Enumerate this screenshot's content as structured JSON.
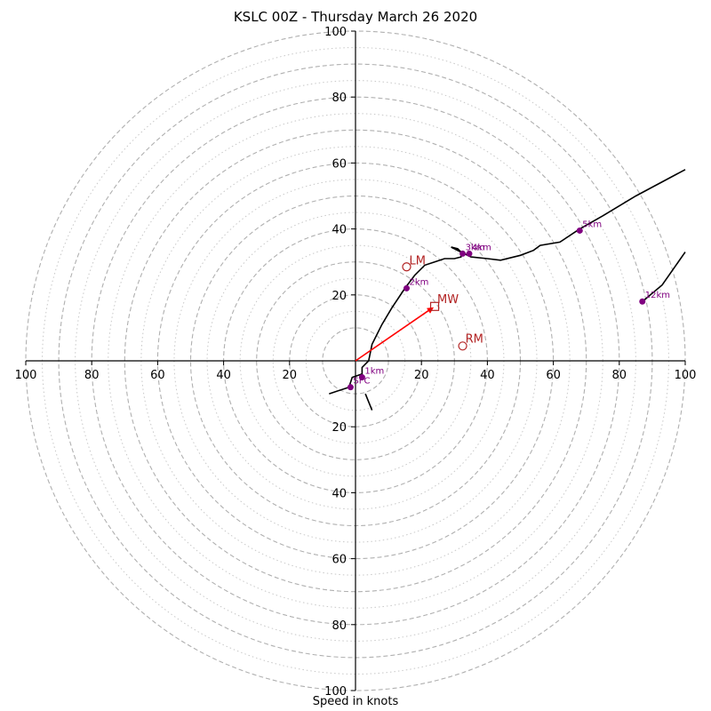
{
  "chart_data": {
    "type": "hodograph",
    "title": "KSLC 00Z - Thursday March 26 2020",
    "xlabel": "Speed in knots",
    "range": [
      -100,
      100
    ],
    "ring_major": [
      10,
      20,
      30,
      40,
      50,
      60,
      70,
      80,
      90,
      100
    ],
    "ring_minor": [
      15,
      25,
      35,
      45,
      55,
      65,
      75,
      85,
      95
    ],
    "x_ticks": [
      {
        "v": -100,
        "label": "100"
      },
      {
        "v": -80,
        "label": "80"
      },
      {
        "v": -60,
        "label": "60"
      },
      {
        "v": -40,
        "label": "40"
      },
      {
        "v": -20,
        "label": "20"
      },
      {
        "v": 20,
        "label": "20"
      },
      {
        "v": 40,
        "label": "40"
      },
      {
        "v": 60,
        "label": "60"
      },
      {
        "v": 80,
        "label": "80"
      },
      {
        "v": 100,
        "label": "100"
      }
    ],
    "y_ticks": [
      {
        "v": 100,
        "label": "100"
      },
      {
        "v": 80,
        "label": "80"
      },
      {
        "v": 60,
        "label": "60"
      },
      {
        "v": 40,
        "label": "40"
      },
      {
        "v": 20,
        "label": "20"
      },
      {
        "v": -20,
        "label": "20"
      },
      {
        "v": -40,
        "label": "40"
      },
      {
        "v": -60,
        "label": "60"
      },
      {
        "v": -80,
        "label": "80"
      },
      {
        "v": -100,
        "label": "100"
      }
    ],
    "trace": [
      [
        -8,
        -10
      ],
      [
        -2,
        -8
      ],
      [
        -1,
        -5
      ],
      [
        2,
        -4
      ],
      [
        2,
        -2
      ],
      [
        4,
        0
      ],
      [
        5,
        5
      ],
      [
        8,
        11
      ],
      [
        11,
        16
      ],
      [
        15,
        22
      ],
      [
        18,
        26
      ],
      [
        21,
        29
      ],
      [
        24,
        30
      ],
      [
        27,
        31
      ],
      [
        30,
        31
      ],
      [
        32,
        31.5
      ],
      [
        32,
        33
      ],
      [
        31,
        34
      ],
      [
        29,
        34.5
      ],
      [
        32,
        33
      ],
      [
        35,
        31.5
      ],
      [
        40,
        31
      ],
      [
        44,
        30.5
      ],
      [
        50,
        32
      ],
      [
        54,
        33.5
      ],
      [
        56,
        35
      ],
      [
        62,
        36
      ],
      [
        68,
        40
      ],
      [
        75,
        44
      ],
      [
        85,
        50
      ],
      [
        100,
        58
      ]
    ],
    "trace2": [
      [
        3,
        -10
      ],
      [
        5,
        -15
      ]
    ],
    "trace3": [
      [
        87,
        18
      ],
      [
        93,
        23
      ],
      [
        100,
        33
      ]
    ],
    "height_markers": [
      {
        "label": "SFC",
        "u": -1.5,
        "v": -8
      },
      {
        "label": "1km",
        "u": 2,
        "v": -5
      },
      {
        "label": "2km",
        "u": 15.5,
        "v": 22
      },
      {
        "label": "3km",
        "u": 32.5,
        "v": 32.5
      },
      {
        "label": "4km",
        "u": 34.5,
        "v": 32.5
      },
      {
        "label": "5km",
        "u": 68,
        "v": 39.5
      },
      {
        "label": "12km",
        "u": 87,
        "v": 18
      }
    ],
    "storm_motion": {
      "LM": {
        "u": 15.5,
        "v": 28.5
      },
      "RM": {
        "u": 32.5,
        "v": 4.5
      },
      "MW": {
        "u": 24,
        "v": 16.5
      }
    },
    "colors": {
      "trace": "#000000",
      "markers": "#800080",
      "storm": "#b22222",
      "vector": "#ff0000",
      "grid": "#b0b0b0"
    }
  }
}
